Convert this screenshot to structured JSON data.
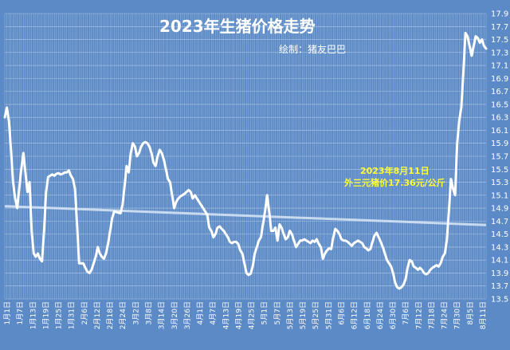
{
  "chart_data": {
    "type": "line",
    "title": "2023年生猪价格走势",
    "subtitle": "绘制：猪友巴巴",
    "annotation": {
      "line1": "2023年8月11日",
      "line2": "外三元猪价17.36元/公斤"
    },
    "y_ticks": [
      "13.5",
      "13.7",
      "13.9",
      "14.1",
      "14.3",
      "14.5",
      "14.7",
      "14.9",
      "15.1",
      "15.3",
      "15.5",
      "15.7",
      "15.9",
      "16.1",
      "16.3",
      "16.5",
      "16.7",
      "16.9",
      "17.1",
      "17.3",
      "17.5",
      "17.7",
      "17.9"
    ],
    "ylim": [
      13.5,
      17.9
    ],
    "x_ticks": [
      "1月1日",
      "1月7日",
      "1月13日",
      "1月19日",
      "1月25日",
      "1月31日",
      "2月6日",
      "2月12日",
      "2月18日",
      "2月24日",
      "3月2日",
      "3月8日",
      "3月14日",
      "3月20日",
      "3月26日",
      "4月1日",
      "4月7日",
      "4月13日",
      "4月19日",
      "4月25日",
      "5月1日",
      "5月7日",
      "5月13日",
      "5月19日",
      "5月25日",
      "5月31日",
      "6月6日",
      "6月12日",
      "6月18日",
      "6月24日",
      "6月30日",
      "7月6日",
      "7月12日",
      "7月18日",
      "7月24日",
      "7月30日",
      "8月5日",
      "8月11日"
    ],
    "series": [
      {
        "values": [
          16.3,
          16.45,
          16.25,
          15.8,
          15.3,
          15.05,
          14.9,
          15.2,
          15.5,
          15.75,
          15.45,
          15.15,
          15.3,
          14.55,
          14.2,
          14.15,
          14.2,
          14.12,
          14.08,
          14.55,
          15.15,
          15.38,
          15.4,
          15.42,
          15.4,
          15.43,
          15.44,
          15.42,
          15.43,
          15.45,
          15.45,
          15.48,
          15.4,
          15.35,
          15.2,
          14.65,
          14.05,
          14.05,
          14.05,
          13.98,
          13.92,
          13.9,
          13.95,
          14.05,
          14.15,
          14.3,
          14.2,
          14.15,
          14.12,
          14.2,
          14.35,
          14.55,
          14.75,
          14.85,
          14.84,
          14.83,
          14.82,
          14.95,
          15.25,
          15.55,
          15.45,
          15.75,
          15.9,
          15.85,
          15.7,
          15.75,
          15.85,
          15.9,
          15.92,
          15.9,
          15.85,
          15.75,
          15.6,
          15.55,
          15.7,
          15.8,
          15.75,
          15.65,
          15.5,
          15.35,
          15.3,
          15.1,
          14.9,
          15.0,
          15.05,
          15.08,
          15.1,
          15.12,
          15.15,
          15.18,
          15.15,
          15.05,
          15.1,
          15.05,
          15.0,
          14.95,
          14.9,
          14.85,
          14.8,
          14.6,
          14.55,
          14.45,
          14.5,
          14.6,
          14.62,
          14.58,
          14.55,
          14.5,
          14.45,
          14.38,
          14.36,
          14.38,
          14.38,
          14.35,
          14.25,
          14.2,
          14.05,
          13.9,
          13.87,
          13.89,
          14.0,
          14.2,
          14.3,
          14.4,
          14.45,
          14.65,
          14.85,
          15.1,
          14.85,
          14.55,
          14.55,
          14.6,
          14.4,
          14.65,
          14.6,
          14.5,
          14.42,
          14.45,
          14.55,
          14.5,
          14.4,
          14.3,
          14.35,
          14.4,
          14.4,
          14.42,
          14.4,
          14.38,
          14.36,
          14.4,
          14.38,
          14.42,
          14.35,
          14.3,
          14.12,
          14.2,
          14.25,
          14.28,
          14.27,
          14.45,
          14.58,
          14.55,
          14.5,
          14.42,
          14.4,
          14.4,
          14.38,
          14.35,
          14.32,
          14.36,
          14.38,
          14.4,
          14.38,
          14.36,
          14.3,
          14.28,
          14.25,
          14.27,
          14.38,
          14.48,
          14.52,
          14.45,
          14.38,
          14.3,
          14.2,
          14.1,
          14.05,
          14.0,
          13.9,
          13.75,
          13.68,
          13.66,
          13.68,
          13.72,
          13.8,
          13.98,
          14.1,
          14.08,
          14.0,
          13.98,
          13.95,
          13.98,
          13.95,
          13.9,
          13.88,
          13.9,
          13.95,
          13.98,
          14.0,
          14.02,
          14.0,
          14.05,
          14.15,
          14.2,
          14.4,
          14.85,
          15.35,
          15.2,
          15.1,
          15.9,
          16.25,
          16.45,
          17.0,
          17.6,
          17.55,
          17.4,
          17.25,
          17.4,
          17.55,
          17.52,
          17.45,
          17.5,
          17.4,
          17.36
        ]
      }
    ],
    "trendline": {
      "start": 14.93,
      "end": 14.64
    },
    "colors": {
      "background": "#5b8ac6",
      "line": "#ffffff",
      "grid": "#cfdff0",
      "trend": "#d9e6f4",
      "annotation": "#ffff33"
    },
    "grid": true
  }
}
